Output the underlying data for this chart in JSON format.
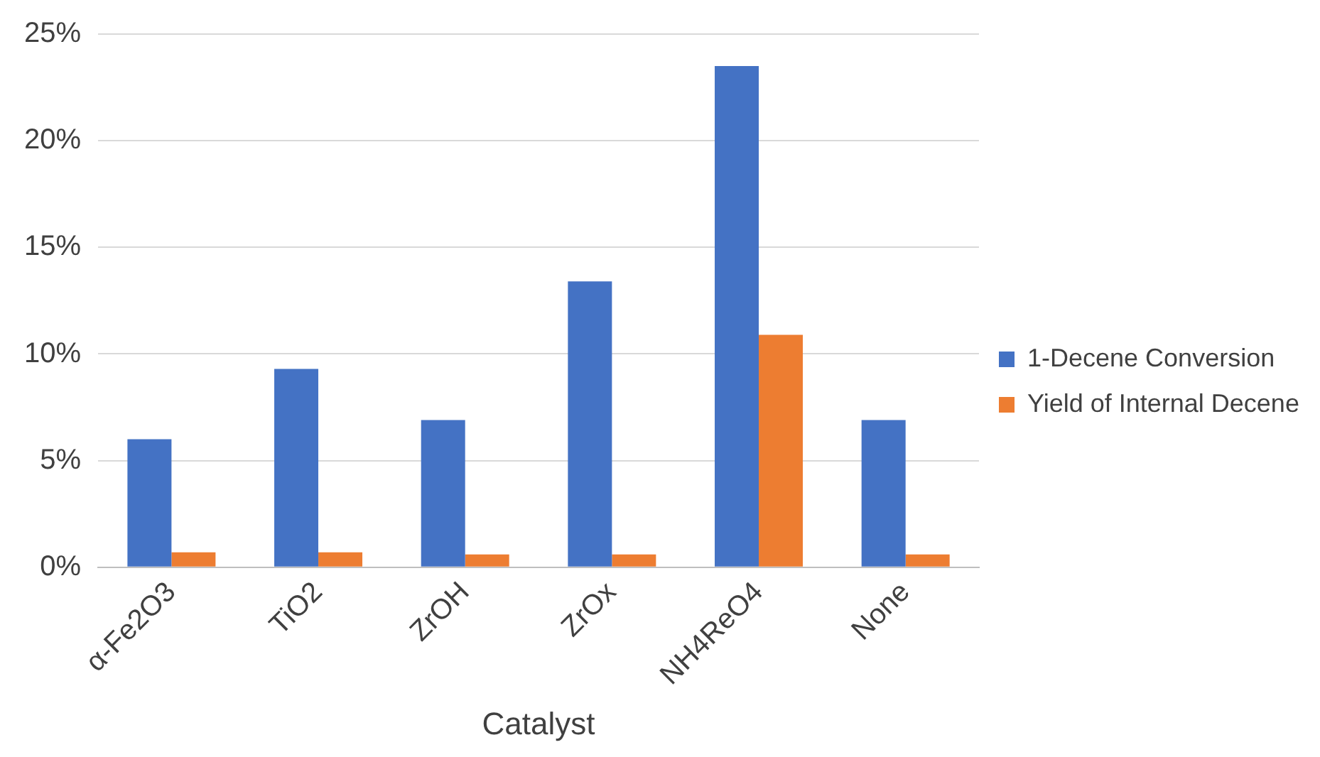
{
  "chart_data": {
    "type": "bar",
    "xlabel": "Catalyst",
    "categories": [
      "α-Fe2O3",
      "TiO2",
      "ZrOH",
      "ZrOx",
      "NH4ReO4",
      "None"
    ],
    "series": [
      {
        "name": "1-Decene Conversion",
        "color": "#4472c4",
        "values": [
          6.0,
          9.3,
          6.9,
          13.4,
          23.5,
          6.9
        ]
      },
      {
        "name": "Yield of Internal Decene",
        "color": "#ed7d31",
        "values": [
          0.7,
          0.7,
          0.6,
          0.6,
          10.9,
          0.6
        ]
      }
    ],
    "ylim": [
      0,
      25
    ],
    "yticks": [
      {
        "value": 0,
        "label": "0%"
      },
      {
        "value": 5,
        "label": "5%"
      },
      {
        "value": 10,
        "label": "10%"
      },
      {
        "value": 15,
        "label": "15%"
      },
      {
        "value": 20,
        "label": "20%"
      },
      {
        "value": 25,
        "label": "25%"
      }
    ],
    "grid": "y",
    "legend": "right"
  }
}
